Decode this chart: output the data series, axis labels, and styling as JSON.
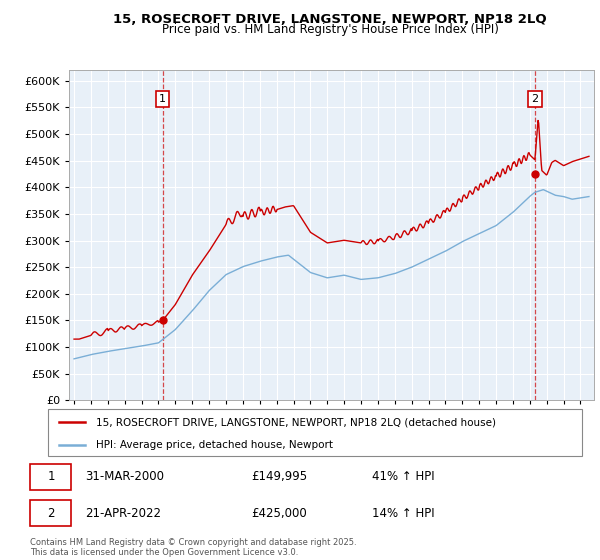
{
  "title": "15, ROSECROFT DRIVE, LANGSTONE, NEWPORT, NP18 2LQ",
  "subtitle": "Price paid vs. HM Land Registry's House Price Index (HPI)",
  "ylim": [
    0,
    620000
  ],
  "xlim_start": 1994.7,
  "xlim_end": 2025.8,
  "bg_color": "#e8f0f8",
  "red_line_color": "#cc0000",
  "blue_line_color": "#7aaed6",
  "grid_color": "#ffffff",
  "purchase1_x": 2000.25,
  "purchase1_y": 149995,
  "purchase1_label": "1",
  "purchase1_date": "31-MAR-2000",
  "purchase1_price": "£149,995",
  "purchase1_hpi": "41% ↑ HPI",
  "purchase2_x": 2022.3,
  "purchase2_y": 425000,
  "purchase2_label": "2",
  "purchase2_date": "21-APR-2022",
  "purchase2_price": "£425,000",
  "purchase2_hpi": "14% ↑ HPI",
  "legend_line1": "15, ROSECROFT DRIVE, LANGSTONE, NEWPORT, NP18 2LQ (detached house)",
  "legend_line2": "HPI: Average price, detached house, Newport",
  "footer": "Contains HM Land Registry data © Crown copyright and database right 2025.\nThis data is licensed under the Open Government Licence v3.0."
}
